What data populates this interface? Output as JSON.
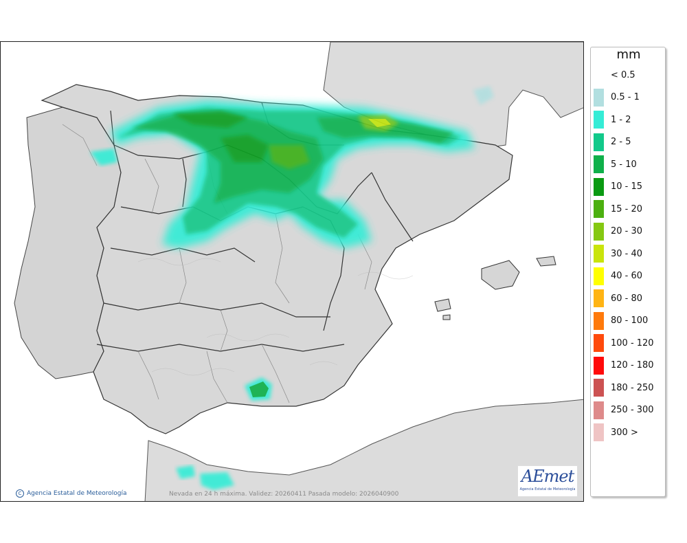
{
  "legend": {
    "unit": "mm",
    "items": [
      {
        "label": "< 0.5",
        "color": ""
      },
      {
        "label": "0.5 - 1",
        "color": "#b2dfe0"
      },
      {
        "label": "1 - 2",
        "color": "#35ecd6"
      },
      {
        "label": "2 - 5",
        "color": "#12c98a"
      },
      {
        "label": "5 - 10",
        "color": "#0fb04a"
      },
      {
        "label": "10 - 15",
        "color": "#0a9a12"
      },
      {
        "label": "15 - 20",
        "color": "#4cb010"
      },
      {
        "label": "20 - 30",
        "color": "#85c812"
      },
      {
        "label": "30 - 40",
        "color": "#c9e40c"
      },
      {
        "label": "40 - 60",
        "color": "#ffff00"
      },
      {
        "label": "60 - 80",
        "color": "#ffb414"
      },
      {
        "label": "80 - 100",
        "color": "#ff7a0c"
      },
      {
        "label": "100 - 120",
        "color": "#ff4a0c"
      },
      {
        "label": "120 - 180",
        "color": "#ff0a0a"
      },
      {
        "label": "180 - 250",
        "color": "#cc5252"
      },
      {
        "label": "250 - 300",
        "color": "#de8a8a"
      },
      {
        "label": "300 >",
        "color": "#efc4c4"
      }
    ]
  },
  "footer": {
    "credit": "Agencia Estatal de Meteorología",
    "validity": "Nevada en 24 h máxima. Validez: 20260411 Pasada modelo: 2026040900",
    "logo_text": "AEmet",
    "logo_sub": "Agencia Estatal de Meteorología"
  },
  "colors": {
    "land": "#d6d6d6",
    "sea": "#ffffff",
    "border": "#333333"
  }
}
